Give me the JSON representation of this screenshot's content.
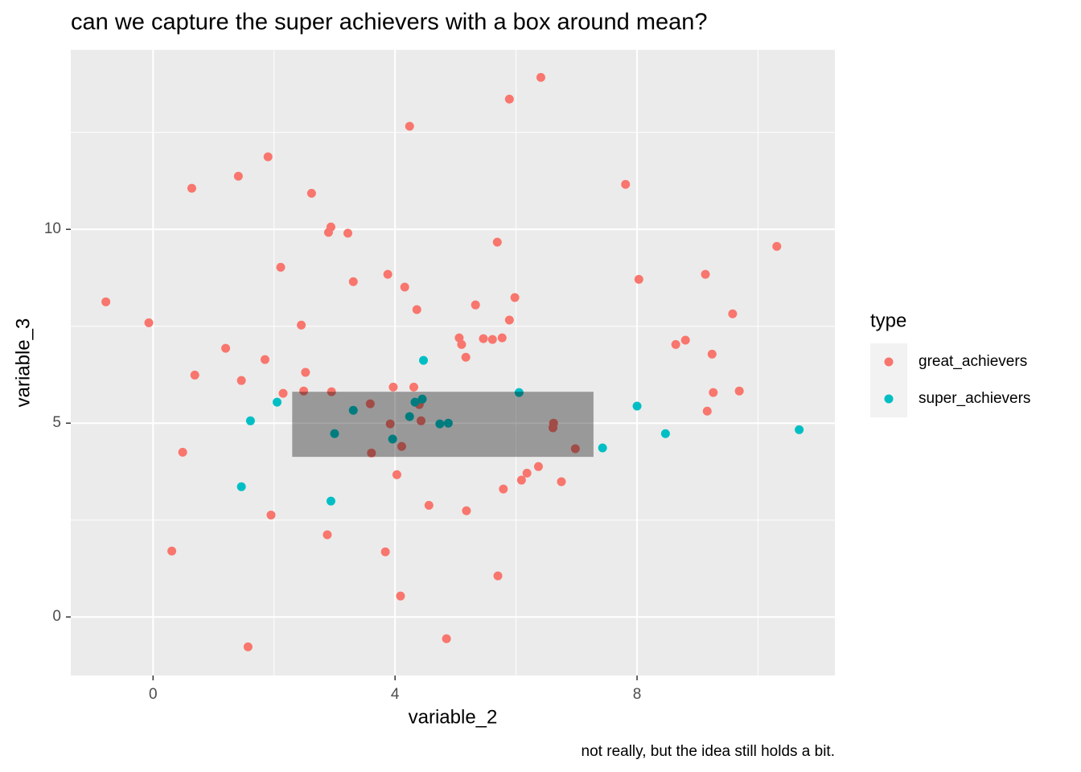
{
  "chart_data": {
    "type": "scatter",
    "title": "can we capture the super achievers with a box around mean?",
    "x_label": "variable_2",
    "y_label": "variable_3",
    "caption": "not really, but the idea still holds a bit.",
    "legend_title": "type",
    "xlim": [
      -1.36,
      11.27
    ],
    "ylim": [
      -1.51,
      14.63
    ],
    "xticks": [
      0,
      4,
      8
    ],
    "yticks": [
      0,
      5,
      10
    ],
    "grid": true,
    "series": [
      {
        "name": "great_achievers",
        "color": "#F8766D",
        "x": [
          -0.78,
          -0.07,
          0.64,
          1.41,
          1.9,
          2.62,
          2.94,
          2.9,
          3.22,
          2.11,
          3.31,
          3.88,
          4.16,
          4.36,
          2.45,
          1.2,
          1.85,
          0.69,
          2.52,
          1.46,
          2.49,
          2.15,
          2.95,
          3.59,
          3.97,
          4.31,
          4.4,
          3.92,
          4.43,
          3.61,
          4.11,
          0.49,
          4.03,
          4.56,
          5.18,
          1.95,
          2.88,
          0.31,
          3.84,
          5.7,
          4.09,
          1.57,
          4.85,
          6.41,
          5.89,
          4.24,
          7.81,
          5.69,
          5.33,
          5.98,
          5.89,
          5.06,
          5.1,
          5.17,
          5.46,
          5.61,
          5.77,
          6.62,
          6.61,
          6.98,
          6.37,
          6.18,
          6.09,
          5.79,
          6.75,
          8.03,
          8.64,
          8.8,
          9.13,
          9.24,
          9.58,
          10.31,
          9.69,
          9.26,
          9.16
        ],
        "values": [
          8.13,
          7.59,
          11.06,
          11.37,
          11.87,
          10.93,
          10.06,
          9.92,
          9.9,
          9.02,
          8.65,
          8.84,
          8.51,
          7.93,
          7.53,
          6.93,
          6.64,
          6.24,
          6.31,
          6.1,
          5.83,
          5.77,
          5.81,
          5.5,
          5.93,
          5.93,
          5.48,
          4.98,
          5.06,
          4.23,
          4.4,
          4.25,
          3.67,
          2.88,
          2.74,
          2.63,
          2.12,
          1.7,
          1.68,
          1.06,
          0.54,
          -0.77,
          -0.56,
          13.92,
          13.36,
          12.66,
          11.16,
          9.67,
          8.05,
          8.24,
          7.66,
          7.2,
          7.03,
          6.7,
          7.18,
          7.16,
          7.2,
          5.0,
          4.88,
          4.34,
          3.88,
          3.71,
          3.53,
          3.3,
          3.49,
          8.71,
          7.03,
          7.14,
          8.84,
          6.78,
          7.82,
          9.56,
          5.83,
          5.79,
          5.31
        ]
      },
      {
        "name": "super_achievers",
        "color": "#00BFC4",
        "x": [
          4.47,
          2.05,
          1.61,
          3.31,
          3.0,
          3.96,
          4.24,
          4.33,
          4.45,
          4.74,
          4.88,
          6.05,
          7.43,
          8.0,
          8.47,
          10.68,
          1.46,
          2.94
        ],
        "values": [
          6.62,
          5.54,
          5.06,
          5.33,
          4.73,
          4.59,
          5.17,
          5.54,
          5.62,
          4.98,
          5.0,
          5.79,
          4.36,
          5.44,
          4.73,
          4.83,
          3.36,
          2.99
        ]
      }
    ],
    "box": {
      "xmin": 2.3,
      "xmax": 7.28,
      "ymin": 4.13,
      "ymax": 5.81,
      "color": "#000000",
      "opacity": 0.35
    }
  }
}
